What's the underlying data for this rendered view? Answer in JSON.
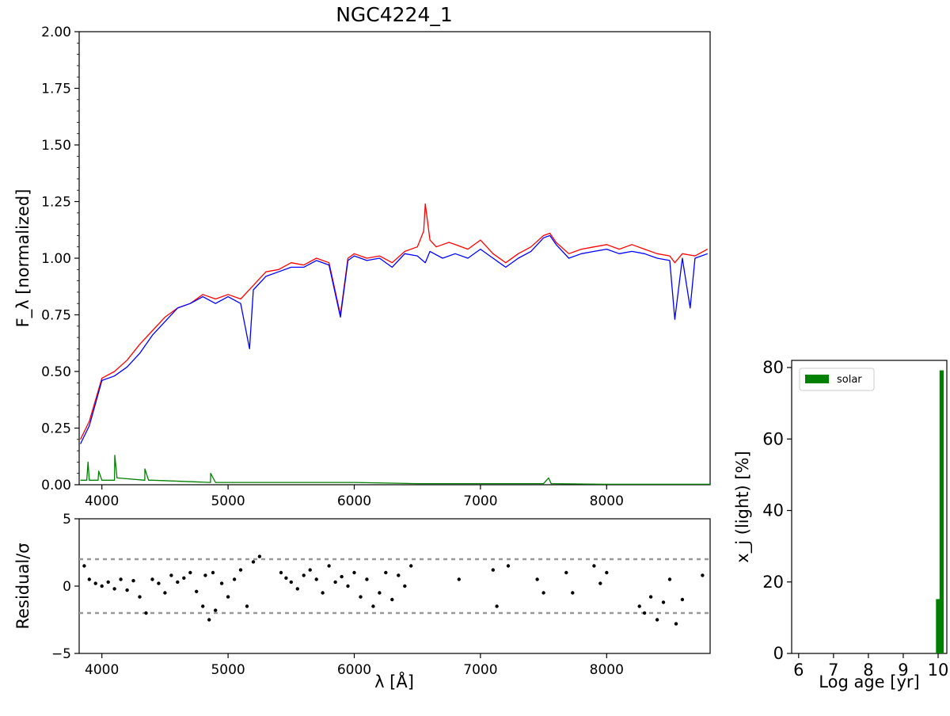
{
  "chart_data": [
    {
      "type": "line",
      "title": "NGC4224_1",
      "xlabel": "λ [Å]",
      "ylabel": "F_λ [normalized]",
      "xlim": [
        3820,
        8820
      ],
      "ylim": [
        0,
        2.0
      ],
      "xticks": [
        4000,
        5000,
        6000,
        7000,
        8000
      ],
      "yticks": [
        "0.00",
        "0.25",
        "0.50",
        "0.75",
        "1.00",
        "1.25",
        "1.50",
        "1.75",
        "2.00"
      ],
      "series": [
        {
          "color": "#ff0000",
          "x": [
            3830,
            3900,
            4000,
            4100,
            4200,
            4300,
            4400,
            4500,
            4600,
            4700,
            4800,
            4900,
            5000,
            5100,
            5200,
            5300,
            5400,
            5500,
            5600,
            5700,
            5800,
            5890,
            5950,
            6000,
            6100,
            6200,
            6300,
            6400,
            6500,
            6550,
            6563,
            6600,
            6650,
            6700,
            6750,
            6800,
            6900,
            7000,
            7100,
            7200,
            7300,
            7400,
            7500,
            7550,
            7600,
            7700,
            7800,
            7900,
            8000,
            8100,
            8200,
            8300,
            8400,
            8500,
            8540,
            8600,
            8700,
            8800
          ],
          "y": [
            0.2,
            0.28,
            0.47,
            0.5,
            0.55,
            0.62,
            0.68,
            0.74,
            0.78,
            0.8,
            0.84,
            0.82,
            0.84,
            0.82,
            0.88,
            0.94,
            0.95,
            0.98,
            0.97,
            1.0,
            0.98,
            0.75,
            1.0,
            1.02,
            1.0,
            1.01,
            0.98,
            1.03,
            1.05,
            1.12,
            1.24,
            1.08,
            1.05,
            1.06,
            1.07,
            1.06,
            1.04,
            1.08,
            1.02,
            0.98,
            1.02,
            1.05,
            1.1,
            1.11,
            1.07,
            1.02,
            1.04,
            1.05,
            1.06,
            1.04,
            1.06,
            1.04,
            1.02,
            1.01,
            0.98,
            1.02,
            1.01,
            1.04
          ]
        },
        {
          "color": "#0000ff",
          "x": [
            3830,
            3900,
            4000,
            4100,
            4200,
            4300,
            4400,
            4500,
            4600,
            4700,
            4800,
            4900,
            5000,
            5100,
            5170,
            5200,
            5300,
            5400,
            5500,
            5600,
            5700,
            5800,
            5890,
            5950,
            6000,
            6100,
            6200,
            6300,
            6400,
            6500,
            6563,
            6600,
            6700,
            6800,
            6900,
            7000,
            7100,
            7200,
            7300,
            7400,
            7500,
            7550,
            7600,
            7700,
            7800,
            7900,
            8000,
            8100,
            8200,
            8300,
            8400,
            8500,
            8540,
            8600,
            8662,
            8700,
            8800
          ],
          "y": [
            0.18,
            0.26,
            0.46,
            0.48,
            0.52,
            0.58,
            0.66,
            0.72,
            0.78,
            0.8,
            0.83,
            0.8,
            0.83,
            0.8,
            0.6,
            0.86,
            0.92,
            0.94,
            0.96,
            0.96,
            0.99,
            0.97,
            0.74,
            0.99,
            1.01,
            0.99,
            1.0,
            0.96,
            1.02,
            1.01,
            0.98,
            1.03,
            1.0,
            1.02,
            1.0,
            1.04,
            1.0,
            0.96,
            1.0,
            1.03,
            1.09,
            1.1,
            1.06,
            1.0,
            1.02,
            1.03,
            1.04,
            1.02,
            1.03,
            1.02,
            1.0,
            0.99,
            0.73,
            1.0,
            0.78,
            1.0,
            1.02
          ]
        },
        {
          "color": "#008000",
          "x": [
            3830,
            3880,
            3890,
            3900,
            3970,
            3975,
            4000,
            4100,
            4102,
            4120,
            4340,
            4341,
            4370,
            4400,
            4861,
            4862,
            4900,
            5000,
            5200,
            5400,
            5700,
            6000,
            6500,
            7000,
            7500,
            7540,
            7560,
            8000,
            8820
          ],
          "y": [
            0.02,
            0.02,
            0.1,
            0.02,
            0.02,
            0.06,
            0.02,
            0.02,
            0.13,
            0.03,
            0.02,
            0.07,
            0.02,
            0.02,
            0.01,
            0.05,
            0.01,
            0.01,
            0.01,
            0.01,
            0.01,
            0.01,
            0.005,
            0.005,
            0.005,
            0.03,
            0.005,
            0.002,
            0.002
          ]
        }
      ]
    },
    {
      "type": "scatter",
      "xlabel": "λ [Å]",
      "ylabel": "Residual/σ",
      "xlim": [
        3820,
        8820
      ],
      "ylim": [
        -5,
        5
      ],
      "xticks": [
        4000,
        5000,
        6000,
        7000,
        8000
      ],
      "yticks": [
        "5",
        "0",
        "−5"
      ],
      "reference_lines": [
        2,
        -2
      ],
      "point_x": [
        3860,
        3900,
        3950,
        4000,
        4050,
        4100,
        4150,
        4200,
        4250,
        4300,
        4350,
        4400,
        4450,
        4500,
        4550,
        4600,
        4650,
        4700,
        4750,
        4800,
        4820,
        4850,
        4880,
        4900,
        4950,
        5000,
        5050,
        5100,
        5150,
        5200,
        5250,
        5420,
        5460,
        5500,
        5550,
        5600,
        5650,
        5700,
        5750,
        5800,
        5850,
        5900,
        5950,
        6000,
        6050,
        6100,
        6150,
        6200,
        6250,
        6300,
        6350,
        6400,
        6450,
        6830,
        7100,
        7130,
        7220,
        7450,
        7500,
        7680,
        7730,
        7900,
        7950,
        8000,
        8260,
        8300,
        8350,
        8400,
        8450,
        8500,
        8550,
        8600,
        8760
      ],
      "point_y": [
        1.5,
        0.5,
        0.2,
        0.0,
        0.3,
        -0.2,
        0.5,
        -0.3,
        0.4,
        -0.8,
        -2.0,
        0.5,
        0.2,
        -0.5,
        0.8,
        0.3,
        0.6,
        1.0,
        -0.4,
        -1.5,
        0.8,
        -2.5,
        1.0,
        -1.8,
        0.2,
        -0.8,
        0.5,
        1.2,
        -1.5,
        1.8,
        2.2,
        1.0,
        0.6,
        0.3,
        -0.2,
        0.8,
        1.2,
        0.5,
        -0.5,
        1.5,
        0.3,
        0.7,
        0.0,
        1.0,
        -0.8,
        0.5,
        -1.5,
        -0.5,
        1.0,
        -1.0,
        0.8,
        0.0,
        1.5,
        0.5,
        1.2,
        -1.5,
        1.5,
        0.5,
        -0.5,
        1.0,
        -0.5,
        1.5,
        0.2,
        1.0,
        -1.5,
        -2.0,
        -0.8,
        -2.5,
        -1.2,
        0.5,
        -2.8,
        -1.0,
        0.8
      ]
    },
    {
      "type": "bar",
      "xlabel": "Log age [yr]",
      "ylabel": "x_j (light) [%]",
      "xlim": [
        5.8,
        10.25
      ],
      "ylim": [
        0,
        82
      ],
      "xticks": [
        "6",
        "7",
        "8",
        "9",
        "10"
      ],
      "yticks": [
        "0",
        "20",
        "40",
        "60",
        "80"
      ],
      "legend_position": "top-left",
      "legend_label": "solar",
      "bar_color": "#008000",
      "bars": [
        {
          "x": 10.0,
          "value": 15.2
        },
        {
          "x": 10.1,
          "value": 79.2
        }
      ]
    }
  ]
}
